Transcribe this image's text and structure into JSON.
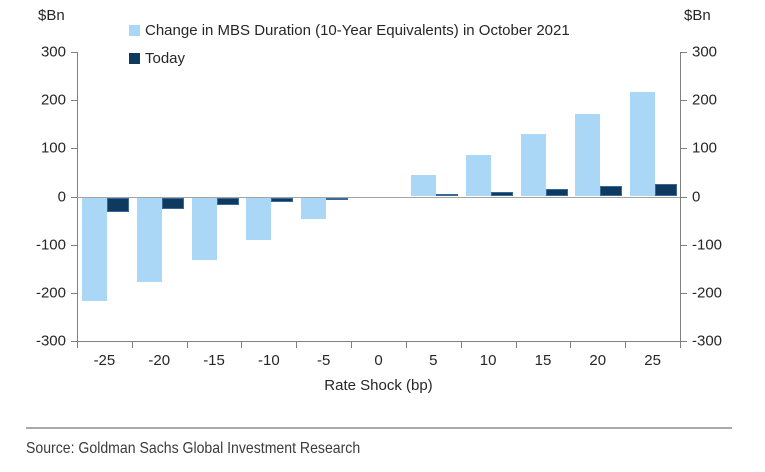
{
  "y_axis": {
    "unit_left": "$Bn",
    "unit_right": "$Bn",
    "ticks": [
      300,
      200,
      100,
      0,
      -100,
      -200,
      -300
    ]
  },
  "chart_data": {
    "type": "bar",
    "title": "",
    "categories": [
      -25,
      -20,
      -15,
      -10,
      -5,
      0,
      5,
      10,
      15,
      20,
      25
    ],
    "series": [
      {
        "name": "Change in MBS Duration (10-Year Equivalents) in October 2021",
        "color": "#ABD7F6",
        "values": [
          -215,
          -176,
          -130,
          -88,
          -44,
          0,
          44,
          86,
          129,
          172,
          216
        ]
      },
      {
        "name": "Today",
        "color": "#0E3A60",
        "values": [
          -31,
          -23,
          -16,
          -10,
          -5,
          0,
          5,
          10,
          16,
          21,
          26
        ]
      }
    ],
    "xlabel": "Rate Shock (bp)",
    "ylabel": "$Bn",
    "ylim": [
      -300,
      300
    ],
    "grid": false,
    "legend_position": "top-inside-left"
  },
  "colors": {
    "axis": "#808080",
    "zero_line": "#A3A3A3",
    "text": "#262626",
    "divider": "#A9A9A9",
    "series_1": "#ABD7F6",
    "series_2": "#0E3A60"
  },
  "footer": {
    "source": "Source: Goldman Sachs Global Investment Research"
  }
}
